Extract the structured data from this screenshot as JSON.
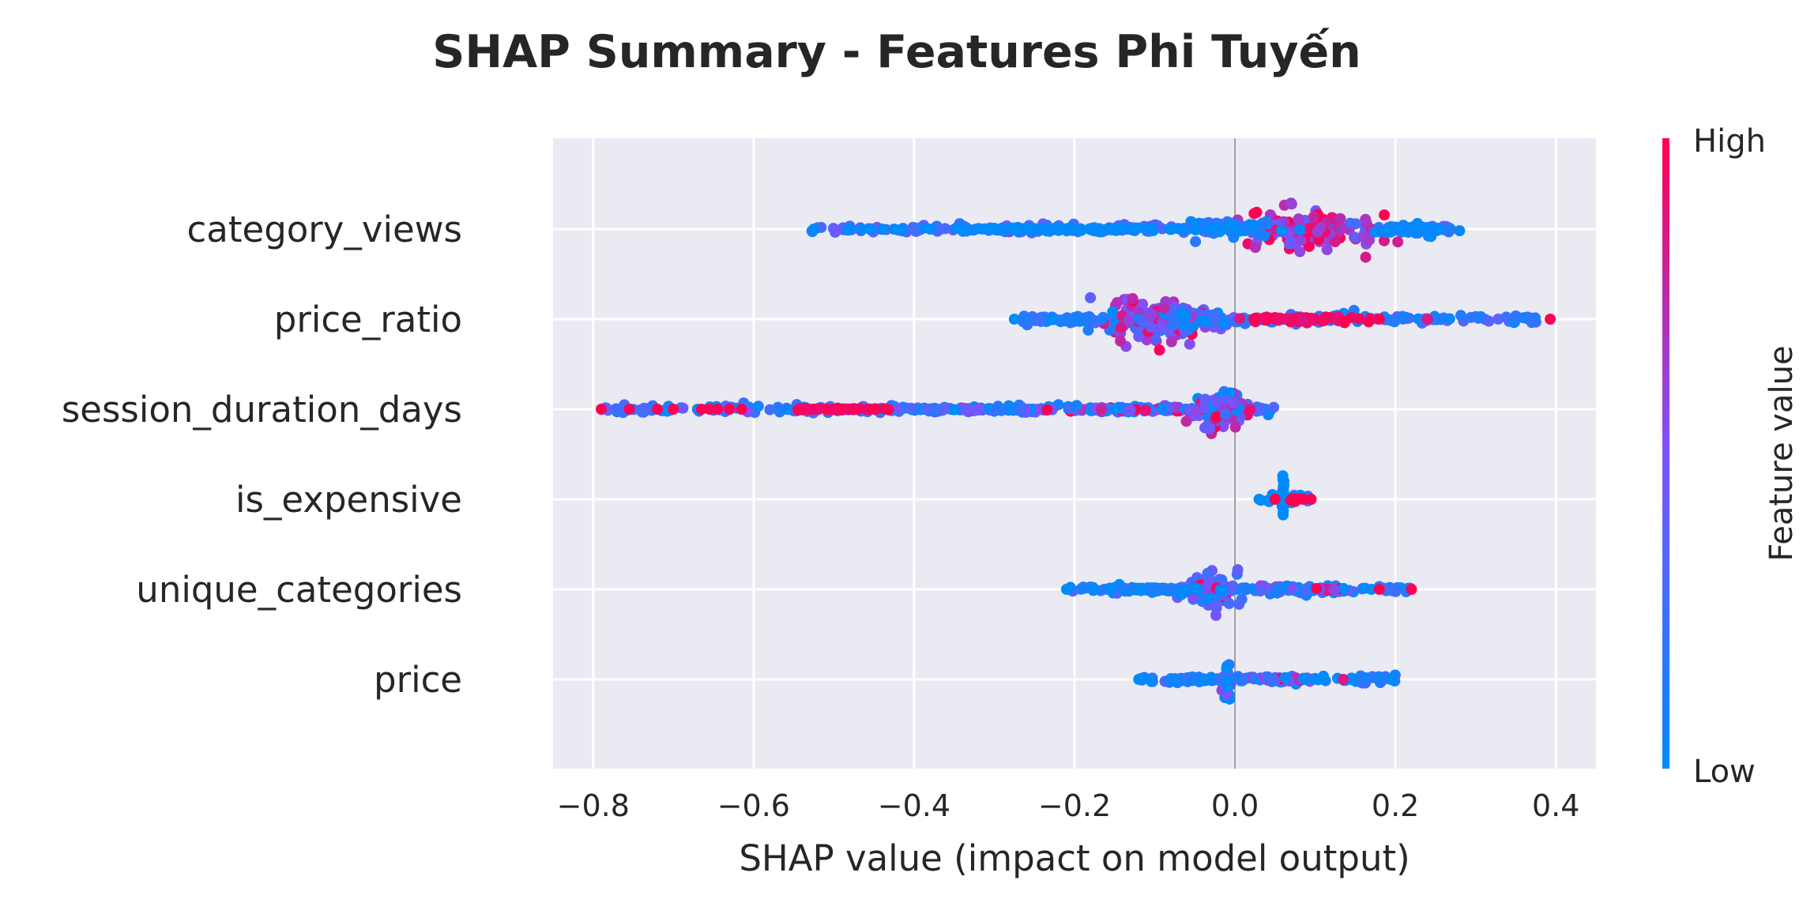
{
  "chart_data": {
    "type": "scatter",
    "subtype": "shap-beeswarm",
    "title": "SHAP Summary - Features Phi Tuyến",
    "xlabel": "SHAP value (impact on model output)",
    "xlim": [
      -0.85,
      0.45
    ],
    "x_ticks": [
      -0.8,
      -0.6,
      -0.4,
      -0.2,
      0.0,
      0.2,
      0.4
    ],
    "x_tick_labels": [
      "−0.8",
      "−0.6",
      "−0.4",
      "−0.2",
      "0.0",
      "0.2",
      "0.4"
    ],
    "grid": true,
    "background": "#eaeaf2",
    "zero_line": true,
    "features": [
      {
        "name": "category_views",
        "min": -0.53,
        "max": 0.28,
        "outliers": [
          {
            "x": -0.525,
            "v": 0.0
          },
          {
            "x": -0.48,
            "v": 0.0
          },
          {
            "x": -0.465,
            "v": 0.0
          },
          {
            "x": -0.455,
            "v": 0.0
          },
          {
            "x": -0.44,
            "v": 0.0
          },
          {
            "x": -0.425,
            "v": 0.0
          },
          {
            "x": -0.415,
            "v": 0.0
          },
          {
            "x": -0.38,
            "v": 0.0
          }
        ],
        "clusters": [
          {
            "center": 0.1,
            "width": 0.08,
            "height": 0.45,
            "weight": 130,
            "v_mean": 0.75,
            "v_spread": 0.25
          },
          {
            "center": -0.01,
            "width": 0.07,
            "height": 0.22,
            "weight": 50,
            "v_mean": 0.1,
            "v_spread": 0.1
          },
          {
            "center": 0.22,
            "width": 0.05,
            "height": 0.12,
            "weight": 40,
            "v_mean": 0.02,
            "v_spread": 0.05
          },
          {
            "center": -0.2,
            "width": 0.18,
            "height": 0.04,
            "weight": 110,
            "v_mean": 0.0,
            "v_spread": 0.02
          }
        ]
      },
      {
        "name": "price_ratio",
        "min": -0.28,
        "max": 0.39,
        "outliers": [
          {
            "x": -0.275,
            "v": 0.0
          },
          {
            "x": 0.18,
            "v": 1.0
          },
          {
            "x": 0.24,
            "v": 0.85
          },
          {
            "x": 0.393,
            "v": 1.0
          }
        ],
        "clusters": [
          {
            "center": -0.1,
            "width": 0.06,
            "height": 0.42,
            "weight": 140,
            "v_mean": 0.45,
            "v_spread": 0.3
          },
          {
            "center": -0.04,
            "width": 0.04,
            "height": 0.2,
            "weight": 40,
            "v_mean": 0.2,
            "v_spread": 0.2
          },
          {
            "center": 0.08,
            "width": 0.07,
            "height": 0.06,
            "weight": 60,
            "v_mean": 0.95,
            "v_spread": 0.05
          },
          {
            "center": -0.21,
            "width": 0.04,
            "height": 0.06,
            "weight": 40,
            "v_mean": 0.1,
            "v_spread": 0.1
          }
        ]
      },
      {
        "name": "session_duration_days",
        "min": -0.79,
        "max": 0.05,
        "outliers": [
          {
            "x": -0.79,
            "v": 1.0
          },
          {
            "x": -0.755,
            "v": 1.0
          },
          {
            "x": -0.72,
            "v": 1.0
          },
          {
            "x": -0.7,
            "v": 1.0
          },
          {
            "x": -0.665,
            "v": 1.0
          },
          {
            "x": -0.655,
            "v": 1.0
          },
          {
            "x": -0.645,
            "v": 1.0
          },
          {
            "x": -0.63,
            "v": 1.0
          },
          {
            "x": -0.615,
            "v": 1.0
          }
        ],
        "clusters": [
          {
            "center": -0.02,
            "width": 0.035,
            "height": 0.4,
            "weight": 120,
            "v_mean": 0.5,
            "v_spread": 0.35
          },
          {
            "center": -0.14,
            "width": 0.1,
            "height": 0.06,
            "weight": 90,
            "v_mean": 0.35,
            "v_spread": 0.35
          },
          {
            "center": -0.35,
            "width": 0.09,
            "height": 0.03,
            "weight": 70,
            "v_mean": 0.25,
            "v_spread": 0.3
          },
          {
            "center": -0.5,
            "width": 0.07,
            "height": 0.02,
            "weight": 50,
            "v_mean": 0.97,
            "v_spread": 0.03
          }
        ]
      },
      {
        "name": "is_expensive",
        "min": 0.03,
        "max": 0.095,
        "outliers": [
          {
            "x": 0.03,
            "v": 0.0
          },
          {
            "x": 0.095,
            "v": 1.0
          },
          {
            "x": 0.085,
            "v": 1.0
          },
          {
            "x": 0.078,
            "v": 1.0
          },
          {
            "x": 0.05,
            "v": 1.0
          }
        ],
        "clusters": [
          {
            "center": 0.06,
            "width": 0.002,
            "height": 0.42,
            "weight": 40,
            "v_mean": 0.0,
            "v_spread": 0.0
          },
          {
            "center": 0.073,
            "width": 0.008,
            "height": 0.06,
            "weight": 8,
            "v_mean": 1.0,
            "v_spread": 0.0
          }
        ]
      },
      {
        "name": "unique_categories",
        "min": -0.21,
        "max": 0.22,
        "outliers": [
          {
            "x": -0.21,
            "v": 0.0
          },
          {
            "x": 0.17,
            "v": 0.0
          },
          {
            "x": 0.18,
            "v": 1.0
          },
          {
            "x": 0.22,
            "v": 1.0
          }
        ],
        "clusters": [
          {
            "center": -0.03,
            "width": 0.03,
            "height": 0.36,
            "weight": 90,
            "v_mean": 0.35,
            "v_spread": 0.3
          },
          {
            "center": -0.1,
            "width": 0.06,
            "height": 0.04,
            "weight": 50,
            "v_mean": 0.05,
            "v_spread": 0.08
          },
          {
            "center": 0.06,
            "width": 0.04,
            "height": 0.07,
            "weight": 40,
            "v_mean": 0.2,
            "v_spread": 0.2
          },
          {
            "center": 0.12,
            "width": 0.025,
            "height": 0.03,
            "weight": 12,
            "v_mean": 0.7,
            "v_spread": 0.3
          }
        ]
      },
      {
        "name": "price",
        "min": -0.12,
        "max": 0.2,
        "outliers": [
          {
            "x": -0.12,
            "v": 0.0
          },
          {
            "x": 0.135,
            "v": 0.85
          },
          {
            "x": 0.195,
            "v": 0.0
          }
        ],
        "clusters": [
          {
            "center": -0.01,
            "width": 0.004,
            "height": 0.42,
            "weight": 40,
            "v_mean": 0.3,
            "v_spread": 0.3
          },
          {
            "center": -0.05,
            "width": 0.04,
            "height": 0.06,
            "weight": 40,
            "v_mean": 0.1,
            "v_spread": 0.15
          },
          {
            "center": 0.06,
            "width": 0.04,
            "height": 0.06,
            "weight": 40,
            "v_mean": 0.35,
            "v_spread": 0.35
          }
        ]
      }
    ],
    "colorbar": {
      "label": "Feature value",
      "high_label": "High",
      "low_label": "Low",
      "low_color": "#008bfb",
      "mid_color": "#7c52ff",
      "high_color": "#ff0052"
    }
  }
}
